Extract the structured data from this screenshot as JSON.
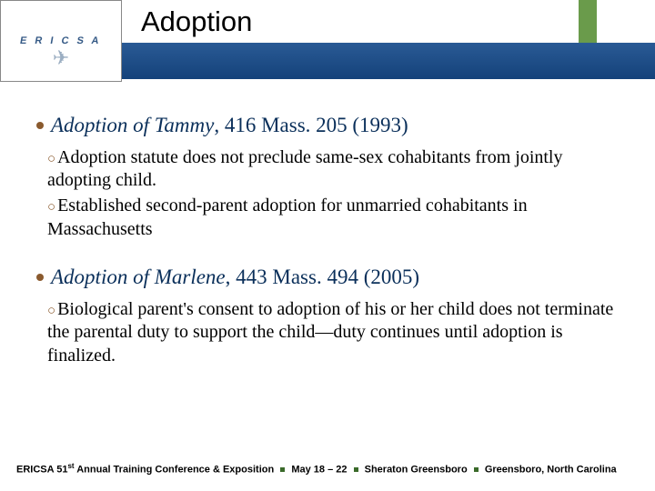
{
  "header": {
    "logo_letters": "E R I C S A",
    "title": "Adoption",
    "colors": {
      "blue_band_top": "#2a5a95",
      "blue_band_bottom": "#14427a",
      "accent_green": "#6a9b4b",
      "heading_navy": "#0a2f5a",
      "bullet_brown": "#8a5a2e"
    }
  },
  "cases": [
    {
      "title_italic": "Adoption of Tammy",
      "title_rest": ", 416 Mass. 205 (1993)",
      "points": [
        "Adoption statute does not preclude same-sex cohabitants from jointly adopting child.",
        "Established second-parent adoption for unmarried cohabitants in Massachusetts"
      ]
    },
    {
      "title_italic": "Adoption of Marlene",
      "title_rest": ", 443 Mass. 494 (2005)",
      "points": [
        "Biological parent's consent to adoption of his or her child does not terminate the parental duty to support the child—duty continues until adoption is finalized."
      ]
    }
  ],
  "footer": {
    "org": "ERICSA 51",
    "org_sup": "st",
    "event": " Annual Training Conference & Exposition",
    "date": "May 18 – 22",
    "venue": "Sheraton Greensboro",
    "city": "Greensboro, North Carolina"
  }
}
